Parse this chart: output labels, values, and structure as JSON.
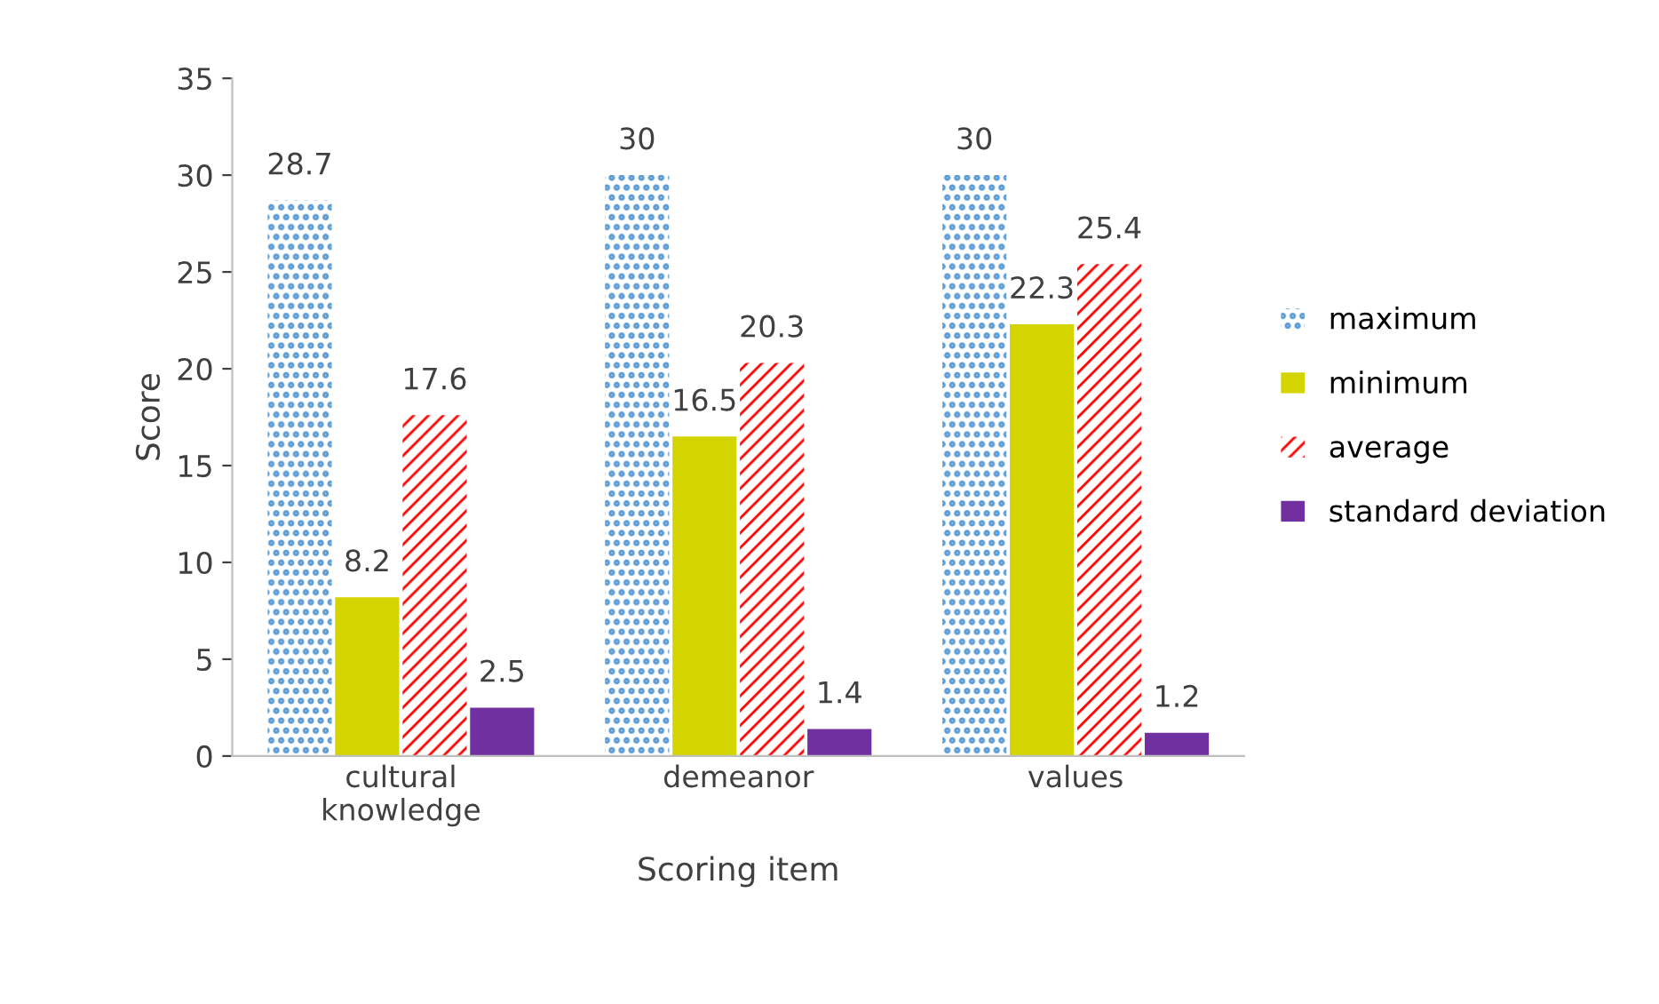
{
  "chart_data": {
    "type": "bar",
    "xlabel": "Scoring item",
    "ylabel": "Score",
    "categories": [
      "cultural\nknowledge",
      "demeanor",
      "values"
    ],
    "series": [
      {
        "name": "maximum",
        "color": "#5b9bd5",
        "values": [
          28.7,
          30,
          30
        ]
      },
      {
        "name": "minimum",
        "color": "#d4d400",
        "values": [
          8.2,
          16.5,
          22.3
        ]
      },
      {
        "name": "average",
        "color": "#ff0000",
        "values": [
          17.6,
          20.3,
          25.4
        ]
      },
      {
        "name": "standard deviation",
        "color": "#7030a0",
        "values": [
          2.5,
          1.4,
          1.2
        ]
      }
    ],
    "ylim": [
      0,
      35
    ],
    "yticks": [
      0,
      5,
      10,
      15,
      20,
      25,
      30,
      35
    ],
    "grid": false,
    "legend": "right",
    "data_labels": true
  }
}
